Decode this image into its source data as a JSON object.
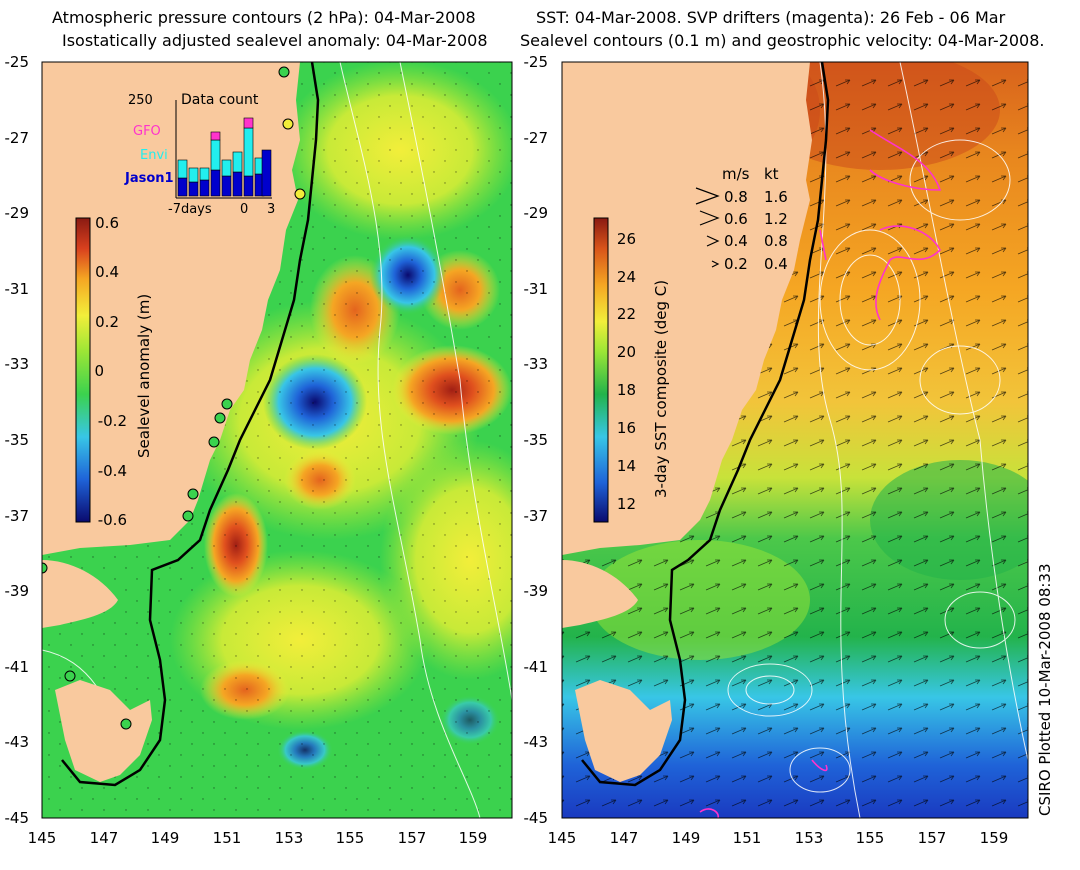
{
  "left_panel": {
    "title_line1": "Atmospheric pressure contours (2 hPa): 04-Mar-2008",
    "title_line2": "Isostatically adjusted sealevel anomaly: 04-Mar-2008",
    "colorbar": {
      "label": "Sealevel anomaly (m)",
      "ticks": [
        "0.6",
        "0.4",
        "0.2",
        "0",
        "-0.2",
        "-0.4",
        "-0.6"
      ]
    },
    "inset": {
      "title": "Data count",
      "ymax_label": "250",
      "legend": [
        "GFO",
        "Envi",
        "Jason1"
      ],
      "xticks": [
        "-7days",
        "0",
        "3"
      ],
      "legend_colors": [
        "#ff33cc",
        "#22eeee",
        "#0000cc"
      ]
    }
  },
  "right_panel": {
    "title_line1": "SST: 04-Mar-2008. SVP drifters (magenta): 26 Feb - 06 Mar",
    "title_line2": "Sealevel contours (0.1 m) and geostrophic velocity: 04-Mar-2008.",
    "colorbar": {
      "label": "3-day SST composite (deg C)",
      "ticks": [
        "26",
        "24",
        "22",
        "20",
        "18",
        "16",
        "14",
        "12"
      ]
    },
    "velocity_legend": {
      "units": [
        "m/s",
        "kt"
      ],
      "rows": [
        [
          "0.8",
          "1.6"
        ],
        [
          "0.6",
          "1.2"
        ],
        [
          "0.4",
          "0.8"
        ],
        [
          "0.2",
          "0.4"
        ]
      ]
    }
  },
  "axes": {
    "y_ticks": [
      "-25",
      "-27",
      "-29",
      "-31",
      "-33",
      "-35",
      "-37",
      "-39",
      "-41",
      "-43",
      "-45"
    ],
    "x_ticks": [
      "145",
      "147",
      "149",
      "151",
      "153",
      "155",
      "157",
      "159"
    ]
  },
  "credit": "CSIRO Plotted 10-Mar-2008 08:33",
  "colors": {
    "land": "#f9c99e",
    "coast_line": "#000000",
    "ssh_ramp": [
      "#0a0a6e",
      "#1f63d8",
      "#38c6e6",
      "#3bd24e",
      "#9be636",
      "#f2ee3a",
      "#f5a623",
      "#d8401e",
      "#8a1a12"
    ],
    "sst_ramp": [
      "#0a0a6e",
      "#1f63d8",
      "#38c6e6",
      "#23b34b",
      "#9be636",
      "#f2ee3a",
      "#f5a623",
      "#d8541a",
      "#8a1a12"
    ],
    "drifter": "#ff33cc",
    "contour": "#ffffff"
  }
}
